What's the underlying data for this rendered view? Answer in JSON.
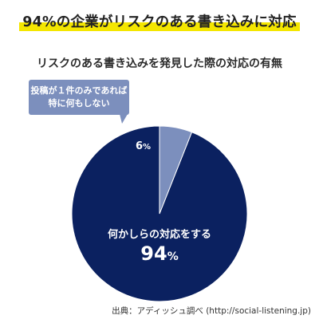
{
  "headline": "94%の企業がリスクのある書き込みに対応",
  "subtitle": "リスクのある書き込みを発見した際の対応の有無",
  "source": "出典：アディッシュ調べ (http://social-listening.jp)",
  "colors": {
    "highlight": "#f4e600",
    "major_slice": "#0b2160",
    "minor_slice": "#7c8fbd",
    "callout_bg": "#7c8fbd"
  },
  "chart_data": {
    "type": "pie",
    "title": "リスクのある書き込みを発見した際の対応の有無",
    "start_angle_deg": 0,
    "direction": "counterclockwise",
    "unit": "%",
    "slices": [
      {
        "label": "何かしらの対応をする",
        "value": 94,
        "value_text": "94",
        "color": "#0b2160"
      },
      {
        "label_lines": [
          "投稿が１件のみであれば",
          "特に何もしない"
        ],
        "value": 6,
        "value_text": "6",
        "color": "#7c8fbd"
      }
    ]
  }
}
